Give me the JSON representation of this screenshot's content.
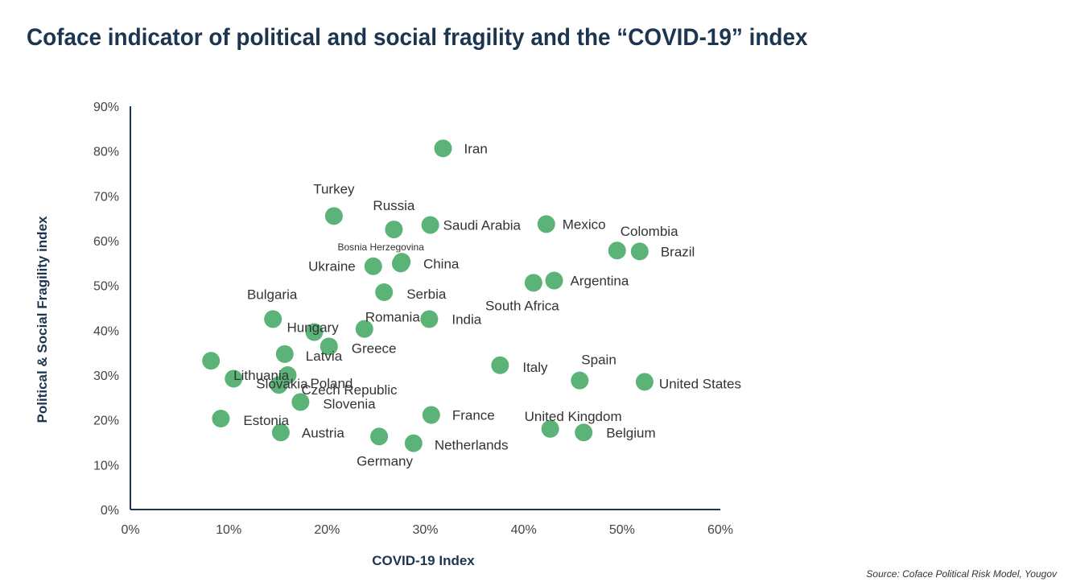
{
  "title": "Coface indicator of political and social fragility and the “COVID-19” index",
  "source": "Source: Coface Political Risk Model, Yougov",
  "chart_data": {
    "type": "scatter",
    "title": "Coface indicator of political and social fragility and the “COVID-19” index",
    "xlabel": "COVID-19 Index",
    "ylabel": "Political & Social Fragility index",
    "xlim": [
      0,
      0.6
    ],
    "ylim": [
      0,
      0.9
    ],
    "x_ticks": [
      "0%",
      "10%",
      "20%",
      "30%",
      "40%",
      "50%",
      "60%"
    ],
    "y_ticks": [
      "0%",
      "10%",
      "20%",
      "30%",
      "40%",
      "50%",
      "60%",
      "70%",
      "80%",
      "90%"
    ],
    "grid": false,
    "color": "#5cb377",
    "points": [
      {
        "label": "Iran",
        "x": 0.318,
        "y": 0.806
      },
      {
        "label": "Turkey",
        "x": 0.207,
        "y": 0.655
      },
      {
        "label": "Russia",
        "x": 0.268,
        "y": 0.625
      },
      {
        "label": "Saudi Arabia",
        "x": 0.305,
        "y": 0.635
      },
      {
        "label": "Mexico",
        "x": 0.423,
        "y": 0.637
      },
      {
        "label": "Colombia",
        "x": 0.495,
        "y": 0.578
      },
      {
        "label": "Brazil",
        "x": 0.518,
        "y": 0.576
      },
      {
        "label": "Bosnia Herzegovina",
        "x": 0.276,
        "y": 0.553
      },
      {
        "label": "China",
        "x": 0.275,
        "y": 0.549
      },
      {
        "label": "Ukraine",
        "x": 0.247,
        "y": 0.543
      },
      {
        "label": "Argentina",
        "x": 0.431,
        "y": 0.511
      },
      {
        "label": "South Africa",
        "x": 0.41,
        "y": 0.506
      },
      {
        "label": "Serbia",
        "x": 0.258,
        "y": 0.485
      },
      {
        "label": "Bulgaria",
        "x": 0.145,
        "y": 0.425
      },
      {
        "label": "India",
        "x": 0.304,
        "y": 0.425
      },
      {
        "label": "Romania",
        "x": 0.238,
        "y": 0.403
      },
      {
        "label": "Hungary",
        "x": 0.187,
        "y": 0.396
      },
      {
        "label": "Greece",
        "x": 0.202,
        "y": 0.364
      },
      {
        "label": "Latvia",
        "x": 0.157,
        "y": 0.347
      },
      {
        "label": "Lithuania",
        "x": 0.082,
        "y": 0.332
      },
      {
        "label": "Italy",
        "x": 0.376,
        "y": 0.322
      },
      {
        "label": "Poland",
        "x": 0.16,
        "y": 0.3
      },
      {
        "label": "Slovakia",
        "x": 0.105,
        "y": 0.292
      },
      {
        "label": "Spain",
        "x": 0.457,
        "y": 0.288
      },
      {
        "label": "United States",
        "x": 0.523,
        "y": 0.285
      },
      {
        "label": "Czech Republic",
        "x": 0.151,
        "y": 0.278
      },
      {
        "label": "Slovenia",
        "x": 0.173,
        "y": 0.24
      },
      {
        "label": "France",
        "x": 0.306,
        "y": 0.211
      },
      {
        "label": "Estonia",
        "x": 0.092,
        "y": 0.203
      },
      {
        "label": "United Kingdom",
        "x": 0.427,
        "y": 0.18
      },
      {
        "label": "Austria",
        "x": 0.153,
        "y": 0.172
      },
      {
        "label": "Belgium",
        "x": 0.461,
        "y": 0.172
      },
      {
        "label": "Germany",
        "x": 0.253,
        "y": 0.163
      },
      {
        "label": "Netherlands",
        "x": 0.288,
        "y": 0.148
      }
    ]
  }
}
